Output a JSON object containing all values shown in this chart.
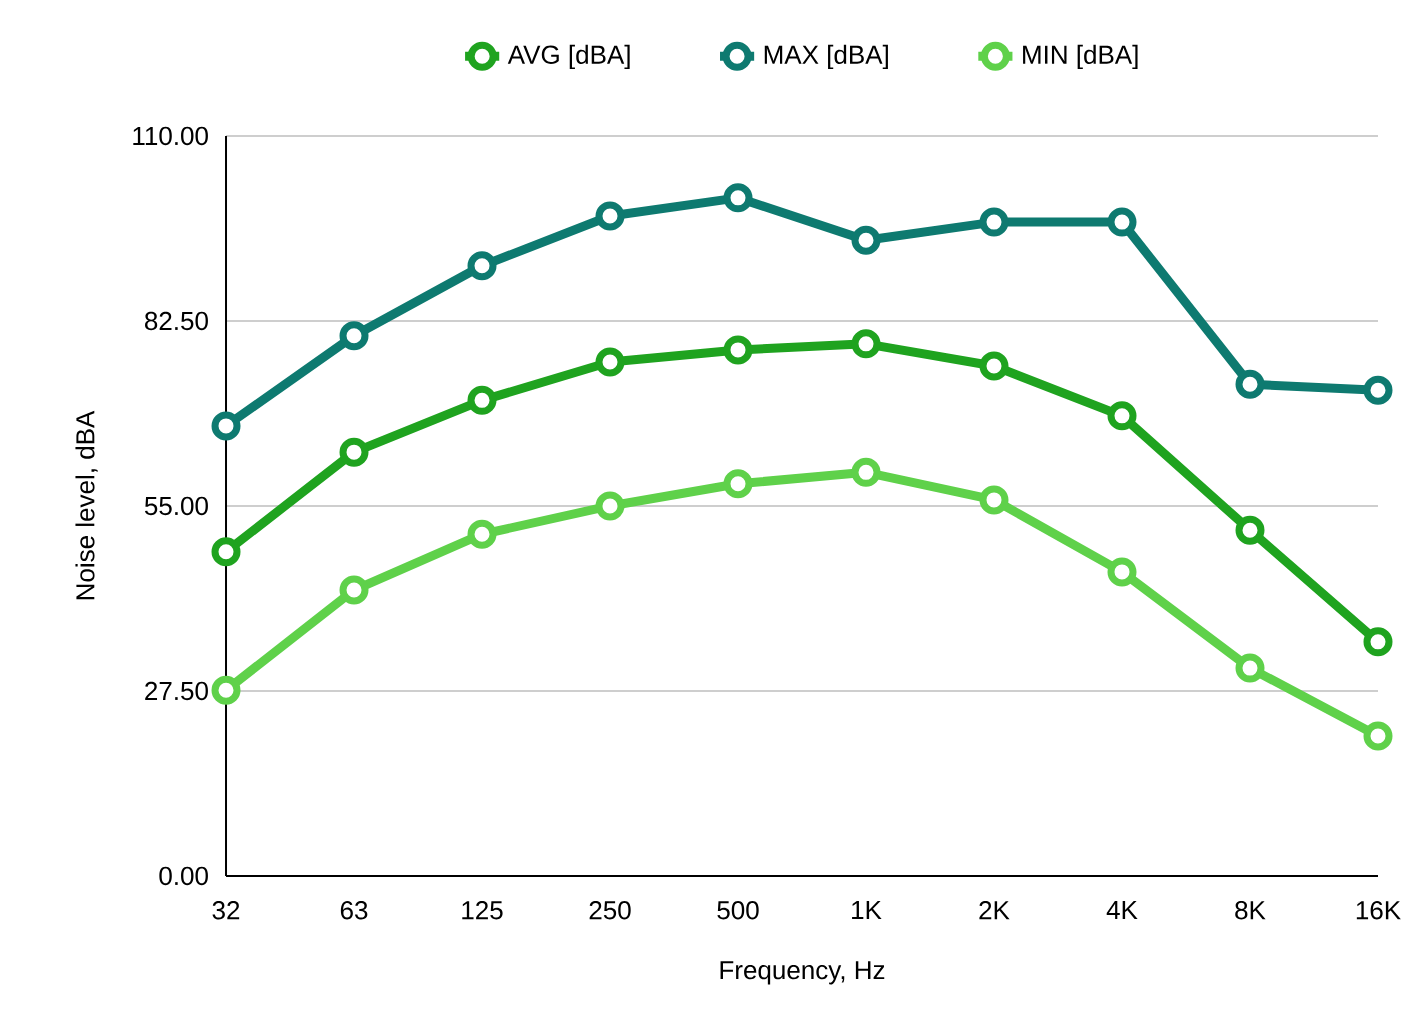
{
  "chart_data": {
    "type": "line",
    "xlabel": "Frequency, Hz",
    "ylabel": "Noise level, dBA",
    "categories": [
      "32",
      "63",
      "125",
      "250",
      "500",
      "1K",
      "2K",
      "4K",
      "8K",
      "16K"
    ],
    "series": [
      {
        "name": "AVG [dBA]",
        "color": "#1fa31f",
        "values": [
          48.2,
          63.0,
          70.7,
          76.4,
          78.2,
          79.1,
          75.8,
          68.4,
          51.4,
          34.8
        ]
      },
      {
        "name": "MAX [dBA]",
        "color": "#0e7a70",
        "values": [
          66.9,
          80.3,
          90.7,
          98.1,
          100.8,
          94.5,
          97.2,
          97.2,
          73.1,
          72.2
        ]
      },
      {
        "name": "MIN [dBA]",
        "color": "#5fd14a",
        "values": [
          27.6,
          42.5,
          50.8,
          55.0,
          58.3,
          60.0,
          55.9,
          45.2,
          30.9,
          20.8
        ]
      }
    ],
    "ylim": [
      0,
      110
    ],
    "yticks": [
      {
        "value": 0,
        "label": "0.00"
      },
      {
        "value": 27.5,
        "label": "27.50"
      },
      {
        "value": 55,
        "label": "55.00"
      },
      {
        "value": 82.5,
        "label": "82.50"
      },
      {
        "value": 110,
        "label": "110.00"
      }
    ],
    "grid": "y",
    "legend": "top",
    "marker": "circle",
    "line_style": "solid"
  }
}
